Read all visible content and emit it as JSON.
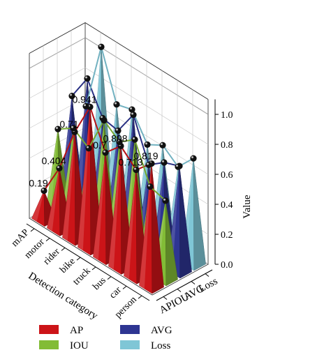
{
  "chart_data": {
    "type": "3d-bar",
    "zlabel": "Value",
    "xlabel": "Detection category",
    "categories": [
      "mAP",
      "motor",
      "rider",
      "bike",
      "truck",
      "bus",
      "car",
      "person"
    ],
    "series_axis_labels": [
      "AP",
      "IOU",
      "AVG",
      "Loss"
    ],
    "zlim": [
      0.0,
      1.0
    ],
    "zticks": [
      "0.0",
      "0.2",
      "0.4",
      "0.6",
      "0.8",
      "1.0"
    ],
    "grid": true,
    "legend_position": "bottom",
    "colors": {
      "AP": "#cc1418",
      "IOU": "#82bc36",
      "AVG": "#2e3592",
      "Loss": "#7fc6d6"
    },
    "series": [
      {
        "name": "AP",
        "values": [
          0.19,
          0.404,
          0.71,
          0.941,
          0.7,
          0.808,
          0.713,
          0.819
        ],
        "labels": [
          "0.19",
          "0.404",
          "0.71",
          "0.941",
          "0.7",
          "0.808",
          "0.713",
          "0.819"
        ]
      },
      {
        "name": "IOU",
        "values": [
          0.55,
          0.62,
          0.55,
          0.8,
          0.72,
          0.8,
          0.55,
          0.52
        ]
      },
      {
        "name": "AVG",
        "values": [
          0.72,
          0.9,
          0.7,
          0.68,
          0.85,
          0.58,
          0.66,
          0.7
        ]
      },
      {
        "name": "Loss",
        "values": [
          0.6,
          1.06,
          0.74,
          0.77,
          0.6,
          0.66,
          0.58,
          0.7
        ]
      }
    ]
  },
  "legend": {
    "items": [
      "AP",
      "IOU",
      "AVG",
      "Loss"
    ]
  }
}
